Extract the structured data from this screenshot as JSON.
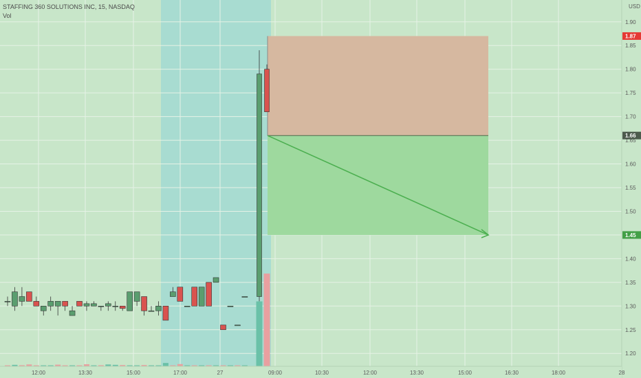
{
  "legend": {
    "symbol": "STAFFING 360 SOLUTIONS INC, 15, NASDAQ",
    "volume": "Vol"
  },
  "colors": {
    "background": "#c8e6c9",
    "up": "#5a9e6f",
    "down": "#d9534f",
    "session_band": "#a8dcd1",
    "stop_zone": "#d6b8a0",
    "target_zone": "#9ed99e",
    "arrow": "#4caf50",
    "gridline": "#e6f2e6"
  },
  "chart_data": {
    "type": "candlestick",
    "title": "STAFFING 360 SOLUTIONS INC, 15, NASDAQ",
    "y_axis_label": "USD",
    "ylim": [
      1.18,
      1.92
    ],
    "y_ticks": [
      "1.90",
      "1.85",
      "1.80",
      "1.75",
      "1.70",
      "1.65",
      "1.60",
      "1.55",
      "1.50",
      "1.45",
      "1.40",
      "1.35",
      "1.30",
      "1.25",
      "1.20"
    ],
    "x_ticks": [
      "12:00",
      "13:30",
      "15:00",
      "17:00",
      "27",
      "09:00",
      "10:30",
      "12:00",
      "13:30",
      "15:00",
      "16:30",
      "18:00",
      "28"
    ],
    "candles": [
      {
        "o": 1.31,
        "h": 1.32,
        "l": 1.3,
        "c": 1.31
      },
      {
        "o": 1.3,
        "h": 1.34,
        "l": 1.29,
        "c": 1.33
      },
      {
        "o": 1.31,
        "h": 1.34,
        "l": 1.3,
        "c": 1.32
      },
      {
        "o": 1.33,
        "h": 1.33,
        "l": 1.31,
        "c": 1.31
      },
      {
        "o": 1.31,
        "h": 1.32,
        "l": 1.3,
        "c": 1.3
      },
      {
        "o": 1.29,
        "h": 1.3,
        "l": 1.28,
        "c": 1.3
      },
      {
        "o": 1.3,
        "h": 1.32,
        "l": 1.29,
        "c": 1.31
      },
      {
        "o": 1.3,
        "h": 1.31,
        "l": 1.28,
        "c": 1.31
      },
      {
        "o": 1.31,
        "h": 1.31,
        "l": 1.29,
        "c": 1.3
      },
      {
        "o": 1.28,
        "h": 1.3,
        "l": 1.28,
        "c": 1.29
      },
      {
        "o": 1.31,
        "h": 1.31,
        "l": 1.3,
        "c": 1.3
      },
      {
        "o": 1.3,
        "h": 1.31,
        "l": 1.29,
        "c": 1.305
      },
      {
        "o": 1.3,
        "h": 1.31,
        "l": 1.3,
        "c": 1.305
      },
      {
        "o": 1.3,
        "h": 1.3,
        "l": 1.29,
        "c": 1.3
      },
      {
        "o": 1.3,
        "h": 1.31,
        "l": 1.29,
        "c": 1.305
      },
      {
        "o": 1.3,
        "h": 1.31,
        "l": 1.29,
        "c": 1.3
      },
      {
        "o": 1.3,
        "h": 1.3,
        "l": 1.29,
        "c": 1.295
      },
      {
        "o": 1.29,
        "h": 1.33,
        "l": 1.29,
        "c": 1.33
      },
      {
        "o": 1.31,
        "h": 1.33,
        "l": 1.3,
        "c": 1.33
      },
      {
        "o": 1.32,
        "h": 1.32,
        "l": 1.28,
        "c": 1.29
      },
      {
        "o": 1.29,
        "h": 1.3,
        "l": 1.29,
        "c": 1.29
      },
      {
        "o": 1.29,
        "h": 1.31,
        "l": 1.28,
        "c": 1.3
      },
      {
        "o": 1.3,
        "h": 1.3,
        "l": 1.27,
        "c": 1.27
      },
      {
        "o": 1.32,
        "h": 1.34,
        "l": 1.32,
        "c": 1.33
      },
      {
        "o": 1.34,
        "h": 1.34,
        "l": 1.31,
        "c": 1.31
      },
      {
        "o": 1.3,
        "h": 1.3,
        "l": 1.3,
        "c": 1.3
      },
      {
        "o": 1.34,
        "h": 1.34,
        "l": 1.3,
        "c": 1.3
      },
      {
        "o": 1.3,
        "h": 1.34,
        "l": 1.3,
        "c": 1.34
      },
      {
        "o": 1.35,
        "h": 1.35,
        "l": 1.3,
        "c": 1.3
      },
      {
        "o": 1.35,
        "h": 1.36,
        "l": 1.35,
        "c": 1.36
      },
      {
        "o": 1.26,
        "h": 1.26,
        "l": 1.25,
        "c": 1.25
      },
      {
        "o": 1.3,
        "h": 1.3,
        "l": 1.3,
        "c": 1.3
      },
      {
        "o": 1.26,
        "h": 1.26,
        "l": 1.26,
        "c": 1.26
      },
      {
        "o": 1.32,
        "h": 1.32,
        "l": 1.32,
        "c": 1.32
      },
      {
        "o": 1.32,
        "h": 1.84,
        "l": 1.31,
        "c": 1.79
      },
      {
        "o": 1.8,
        "h": 1.81,
        "l": 1.71,
        "c": 1.71
      }
    ],
    "volume": [
      {
        "v": 0.05,
        "dir": "down"
      },
      {
        "v": 0.08,
        "dir": "up"
      },
      {
        "v": 0.06,
        "dir": "down"
      },
      {
        "v": 0.1,
        "dir": "down"
      },
      {
        "v": 0.04,
        "dir": "down"
      },
      {
        "v": 0.05,
        "dir": "up"
      },
      {
        "v": 0.05,
        "dir": "up"
      },
      {
        "v": 0.09,
        "dir": "down"
      },
      {
        "v": 0.04,
        "dir": "down"
      },
      {
        "v": 0.04,
        "dir": "up"
      },
      {
        "v": 0.05,
        "dir": "down"
      },
      {
        "v": 0.11,
        "dir": "down"
      },
      {
        "v": 0.04,
        "dir": "up"
      },
      {
        "v": 0.06,
        "dir": "down"
      },
      {
        "v": 0.1,
        "dir": "up"
      },
      {
        "v": 0.08,
        "dir": "up"
      },
      {
        "v": 0.07,
        "dir": "down"
      },
      {
        "v": 0.05,
        "dir": "up"
      },
      {
        "v": 0.04,
        "dir": "up"
      },
      {
        "v": 0.07,
        "dir": "down"
      },
      {
        "v": 0.04,
        "dir": "up"
      },
      {
        "v": 0.05,
        "dir": "up"
      },
      {
        "v": 0.18,
        "dir": "up"
      },
      {
        "v": 0.05,
        "dir": "down"
      },
      {
        "v": 0.12,
        "dir": "down"
      },
      {
        "v": 0.04,
        "dir": "up"
      },
      {
        "v": 0.04,
        "dir": "down"
      },
      {
        "v": 0.04,
        "dir": "up"
      },
      {
        "v": 0.05,
        "dir": "down"
      },
      {
        "v": 0.05,
        "dir": "up"
      },
      {
        "v": 0.04,
        "dir": "down"
      },
      {
        "v": 0.04,
        "dir": "up"
      },
      {
        "v": 0.04,
        "dir": "down"
      },
      {
        "v": 0.04,
        "dir": "up"
      },
      {
        "v": 3.5,
        "dir": "up"
      },
      {
        "v": 5.0,
        "dir": "down"
      }
    ],
    "position": {
      "entry": 1.66,
      "stop": 1.87,
      "target": 1.45,
      "entry_label": "1.66",
      "stop_label": "1.87",
      "target_label": "1.45"
    }
  }
}
